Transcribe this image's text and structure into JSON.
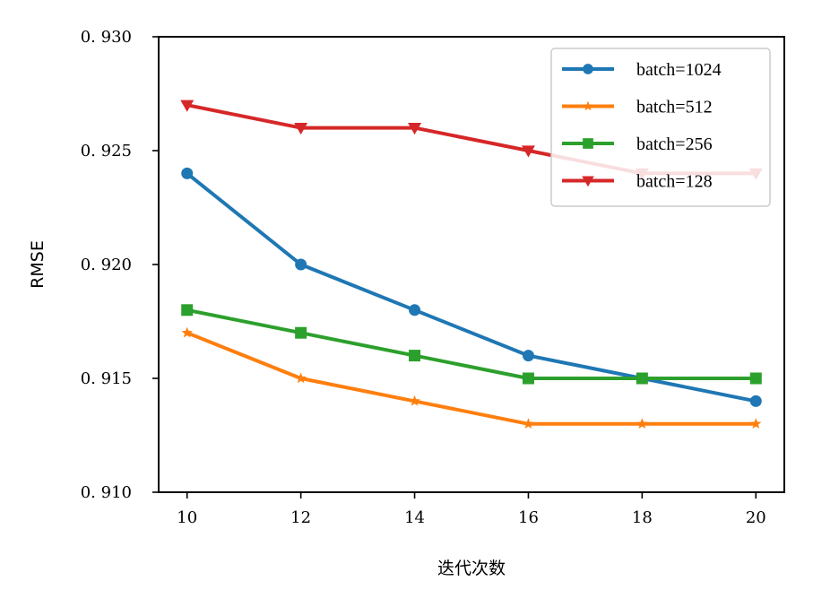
{
  "chart_data": {
    "type": "line",
    "title": "",
    "xlabel": "迭代次数",
    "ylabel": "RMSE",
    "x": [
      10,
      12,
      14,
      16,
      18,
      20
    ],
    "xticks": [
      "10",
      "12",
      "14",
      "16",
      "18",
      "20"
    ],
    "yticks": [
      "0. 910",
      "0. 915",
      "0. 920",
      "0. 925",
      "0. 930"
    ],
    "ytick_values": [
      0.91,
      0.915,
      0.92,
      0.925,
      0.93
    ],
    "ylim": [
      0.91,
      0.93
    ],
    "xlim": [
      9.5,
      20.5
    ],
    "grid": false,
    "legend_position": "upper-right",
    "series": [
      {
        "name": "batch=1024",
        "color": "#1f77b4",
        "marker": "circle",
        "values": [
          0.924,
          0.92,
          0.918,
          0.916,
          0.915,
          0.914
        ]
      },
      {
        "name": "batch=512",
        "color": "#ff7f0e",
        "marker": "star",
        "values": [
          0.917,
          0.915,
          0.914,
          0.913,
          0.913,
          0.913
        ]
      },
      {
        "name": "batch=256",
        "color": "#2ca02c",
        "marker": "square",
        "values": [
          0.918,
          0.917,
          0.916,
          0.915,
          0.915,
          0.915
        ]
      },
      {
        "name": "batch=128",
        "color": "#d62728",
        "marker": "triangle-down",
        "values": [
          0.927,
          0.926,
          0.926,
          0.925,
          0.924,
          0.924
        ]
      }
    ]
  }
}
